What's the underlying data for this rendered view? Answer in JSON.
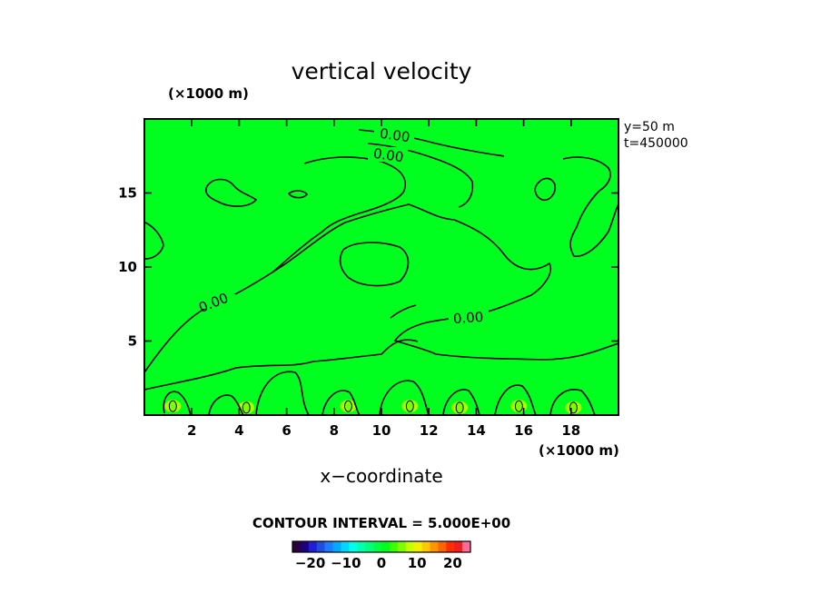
{
  "chart_data": {
    "type": "heatmap",
    "title": "vertical velocity",
    "xlabel": "x−coordinate",
    "y_unit_label": "(×1000 m)",
    "x_unit_label": "(×1000 m)",
    "annotations": [
      "y=50  m",
      "t=450000"
    ],
    "contour_interval_text": "CONTOUR INTERVAL = 5.000E+00",
    "contour_labels": [
      "0.00",
      "0.00",
      "0.00",
      "0.00"
    ],
    "xlim": [
      0,
      20
    ],
    "ylim": [
      0,
      20
    ],
    "x_ticks": [
      2,
      4,
      6,
      8,
      10,
      12,
      14,
      16,
      18
    ],
    "y_ticks": [
      5,
      10,
      15
    ],
    "background_value": 0,
    "field_color": "#00ff1e",
    "near_surface_cells": [
      {
        "x": 1.2,
        "y": 0.6,
        "value": 5
      },
      {
        "x": 4.3,
        "y": 0.5,
        "value": 5
      },
      {
        "x": 8.6,
        "y": 0.6,
        "value": 5
      },
      {
        "x": 11.2,
        "y": 0.6,
        "value": 5
      },
      {
        "x": 13.3,
        "y": 0.5,
        "value": 5
      },
      {
        "x": 15.8,
        "y": 0.6,
        "value": 5
      },
      {
        "x": 18.1,
        "y": 0.5,
        "value": 5
      }
    ],
    "colorbar": {
      "ticks": [
        -20,
        -10,
        0,
        10,
        20
      ],
      "tick_labels": [
        "−20",
        "−10",
        "0",
        "10",
        "20"
      ],
      "colors": [
        "#2a0040",
        "#1c0080",
        "#1f1fd6",
        "#1f4fe0",
        "#1e7aff",
        "#00aaff",
        "#00d6ff",
        "#00ffe6",
        "#00ffb0",
        "#00ff7a",
        "#00ff46",
        "#00ff1e",
        "#3dff00",
        "#7dff00",
        "#c8ff00",
        "#f0f000",
        "#ffc800",
        "#ff9600",
        "#ff6400",
        "#ff2d00",
        "#f01e1e",
        "#ff6e9a"
      ]
    }
  }
}
